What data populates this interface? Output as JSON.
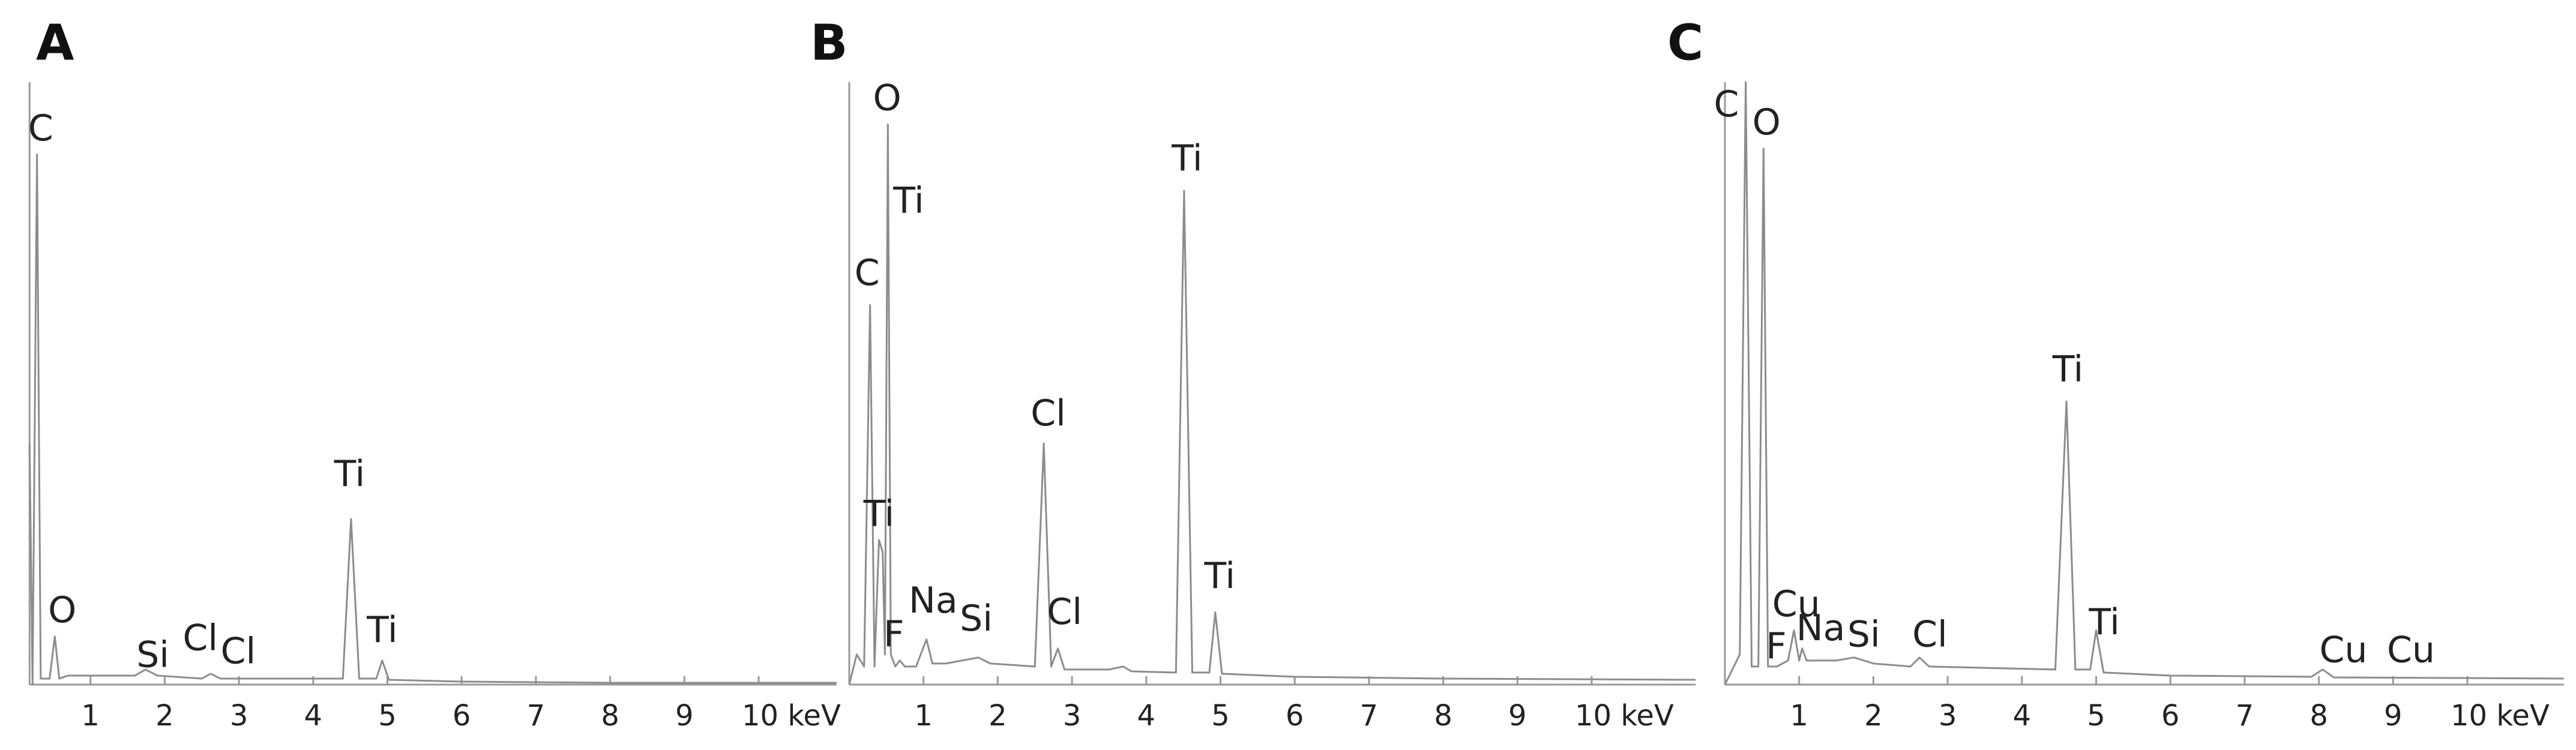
{
  "chart_data": [
    {
      "panel_label": "A",
      "type": "line",
      "xlim": [
        0.18,
        11.05
      ],
      "ylim": [
        0,
        100
      ],
      "xticks": [
        1,
        2,
        3,
        4,
        5,
        6,
        7,
        8,
        9,
        {
          "value": 10,
          "label": "10 keV"
        }
      ],
      "series": [
        {
          "color": "#8c8c8c",
          "x": [
            0.18,
            0.22,
            0.28,
            0.33,
            0.45,
            0.52,
            0.58,
            0.7,
            1.0,
            1.6,
            1.74,
            1.9,
            2.5,
            2.62,
            2.75,
            4.4,
            4.51,
            4.62,
            4.85,
            4.93,
            5.02,
            6,
            8,
            11.05
          ],
          "values": [
            40,
            0,
            88,
            1,
            1,
            8,
            1,
            1.5,
            1.5,
            1.5,
            2.5,
            1.5,
            1,
            1.8,
            1,
            1,
            27.5,
            1,
            1,
            4,
            0.8,
            0.5,
            0.3,
            0.3
          ]
        }
      ],
      "annotations": [
        {
          "text": "C",
          "x": 0.33,
          "y": 92
        },
        {
          "text": "O",
          "x": 0.62,
          "y": 12
        },
        {
          "text": "Si",
          "x": 1.84,
          "y": 4.6
        },
        {
          "text": "Cl",
          "x": 2.48,
          "y": 7.4
        },
        {
          "text": "Cl",
          "x": 2.99,
          "y": 5.2
        },
        {
          "text": "Ti",
          "x": 4.49,
          "y": 34.6
        },
        {
          "text": "Ti",
          "x": 4.93,
          "y": 8.7
        }
      ]
    },
    {
      "panel_label": "B",
      "type": "line",
      "xlim": [
        0,
        11.4
      ],
      "ylim": [
        0,
        100
      ],
      "xticks": [
        1,
        2,
        3,
        4,
        5,
        6,
        7,
        8,
        9,
        {
          "value": 10,
          "label": "10 keV"
        }
      ],
      "series": [
        {
          "color": "#8c8c8c",
          "x": [
            0,
            0.1,
            0.2,
            0.28,
            0.34,
            0.4,
            0.45,
            0.48,
            0.52,
            0.56,
            0.62,
            0.68,
            0.75,
            0.9,
            1.04,
            1.12,
            1.3,
            1.74,
            1.9,
            2.5,
            2.62,
            2.72,
            2.81,
            2.9,
            3.5,
            3.69,
            3.8,
            4.4,
            4.51,
            4.62,
            4.85,
            4.93,
            5.02,
            6,
            8,
            11.4
          ],
          "values": [
            0,
            5,
            3,
            63,
            3,
            24,
            22,
            5,
            93,
            5,
            3,
            4,
            3,
            3,
            7.5,
            3.5,
            3.5,
            4.5,
            3.5,
            3,
            40,
            3,
            6,
            2.5,
            2.5,
            3,
            2.2,
            2,
            82,
            2,
            2,
            12,
            1.8,
            1.3,
            1,
            0.8
          ]
        }
      ],
      "annotations": [
        {
          "text": "O",
          "x": 0.51,
          "y": 97
        },
        {
          "text": "Ti",
          "x": 0.8,
          "y": 80
        },
        {
          "text": "C",
          "x": 0.24,
          "y": 68
        },
        {
          "text": "Ti",
          "x": 0.4,
          "y": 28
        },
        {
          "text": "F",
          "x": 0.6,
          "y": 8
        },
        {
          "text": "Na",
          "x": 1.13,
          "y": 13.6
        },
        {
          "text": "Si",
          "x": 1.71,
          "y": 10.6
        },
        {
          "text": "Cl",
          "x": 2.68,
          "y": 44.7
        },
        {
          "text": "Cl",
          "x": 2.9,
          "y": 11.7
        },
        {
          "text": "Ti",
          "x": 4.55,
          "y": 87
        },
        {
          "text": "Ti",
          "x": 4.99,
          "y": 17.7
        }
      ]
    },
    {
      "panel_label": "C",
      "type": "line",
      "xlim": [
        0,
        11.3
      ],
      "ylim": [
        0,
        100
      ],
      "xticks": [
        1,
        2,
        3,
        4,
        5,
        6,
        7,
        8,
        9,
        {
          "value": 10,
          "label": "10 keV"
        }
      ],
      "series": [
        {
          "color": "#8c8c8c",
          "x": [
            0,
            0.12,
            0.2,
            0.28,
            0.36,
            0.45,
            0.52,
            0.58,
            0.7,
            0.85,
            0.93,
            1.0,
            1.04,
            1.1,
            1.5,
            1.74,
            2.0,
            2.5,
            2.62,
            2.75,
            4.45,
            4.6,
            4.72,
            4.92,
            5.0,
            5.1,
            6,
            7.9,
            8.05,
            8.2,
            11.3
          ],
          "values": [
            0,
            3,
            5,
            100,
            3,
            3,
            89,
            3,
            3,
            4,
            9,
            4,
            6,
            4,
            4,
            4.5,
            3.5,
            3,
            4.5,
            3,
            2.5,
            47,
            2.5,
            2.5,
            9,
            2,
            1.5,
            1.3,
            2.5,
            1.2,
            1
          ]
        }
      ],
      "annotations": [
        {
          "text": "C",
          "x": 0.02,
          "y": 96
        },
        {
          "text": "O",
          "x": 0.56,
          "y": 93
        },
        {
          "text": "Cu",
          "x": 0.96,
          "y": 13
        },
        {
          "text": "Na",
          "x": 1.29,
          "y": 9
        },
        {
          "text": "F",
          "x": 0.69,
          "y": 6
        },
        {
          "text": "Si",
          "x": 1.87,
          "y": 8
        },
        {
          "text": "Cl",
          "x": 2.76,
          "y": 8
        },
        {
          "text": "Ti",
          "x": 4.62,
          "y": 52
        },
        {
          "text": "Ti",
          "x": 5.11,
          "y": 10
        },
        {
          "text": "Cu",
          "x": 8.33,
          "y": 5.4
        },
        {
          "text": "Cu",
          "x": 9.24,
          "y": 5.4
        }
      ]
    }
  ]
}
